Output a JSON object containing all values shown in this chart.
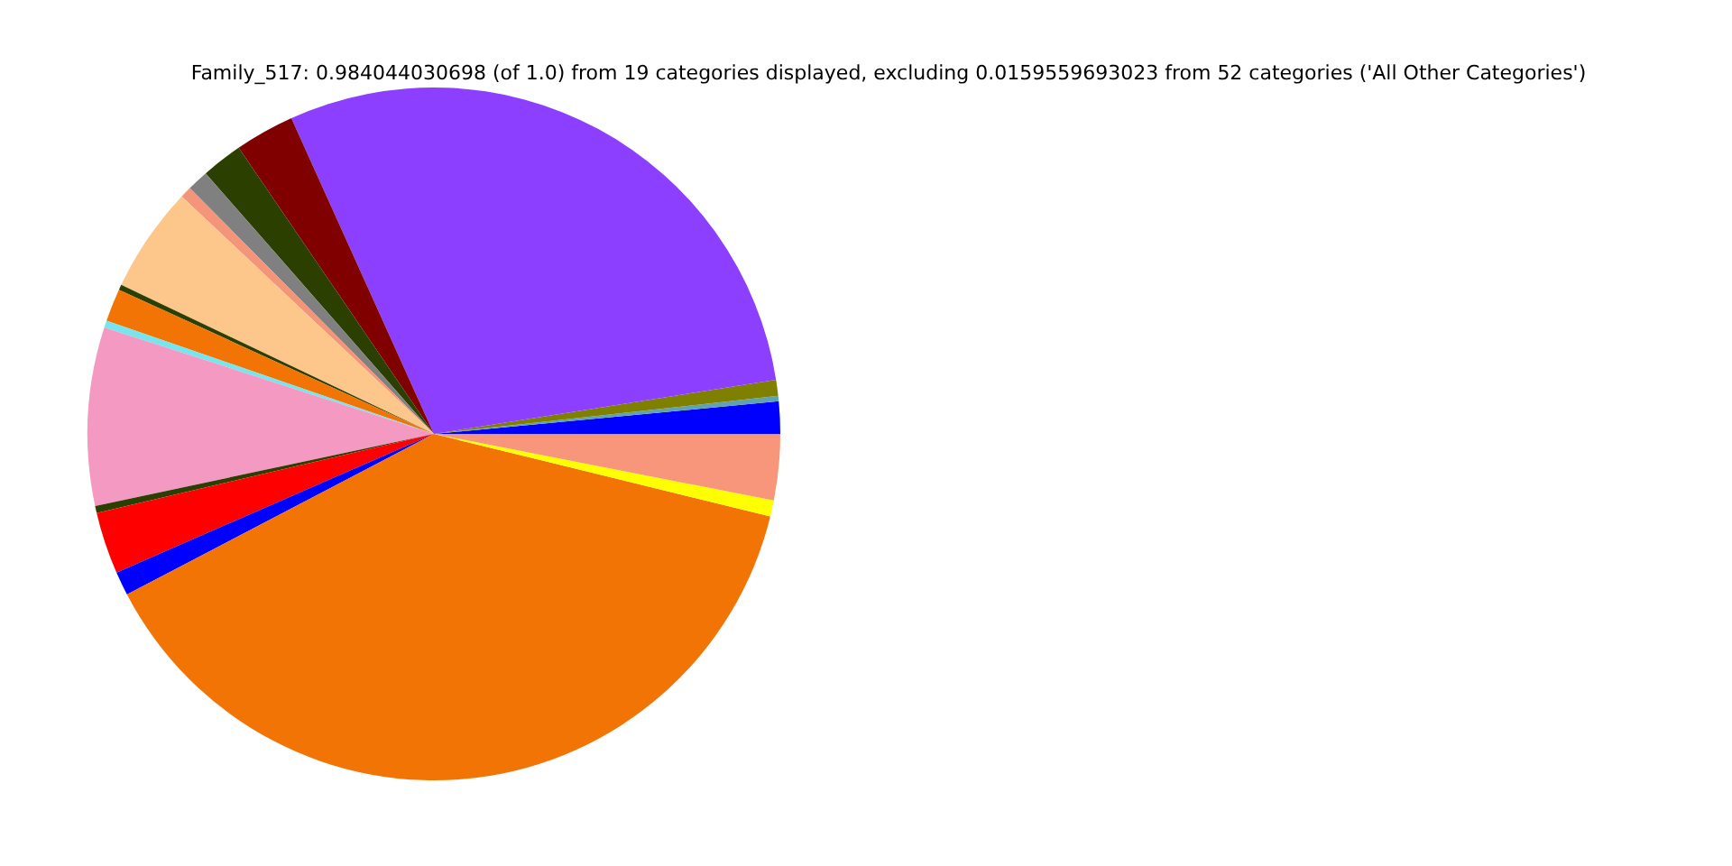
{
  "chart_data": {
    "type": "pie",
    "title": "Family_517: 0.984044030698 (of 1.0) from 19 categories displayed, excluding 0.0159559693023 from 52 categories ('All Other Categories')",
    "categories": [
      null,
      null,
      null,
      null,
      null,
      null,
      null,
      null,
      null,
      null,
      null,
      null,
      null,
      null,
      null,
      null,
      null,
      null,
      null
    ],
    "values": [
      1.5,
      0.25,
      0.75,
      29.25,
      2.78,
      1.92,
      1.0,
      0.53,
      4.94,
      0.25,
      1.53,
      0.33,
      8.31,
      0.33,
      2.89,
      1.11,
      38.5,
      0.75,
      3.08
    ],
    "colors": [
      "#0000ff",
      "#5fa3b0",
      "#808000",
      "#8c3fff",
      "#800000",
      "#2b3f00",
      "#808080",
      "#f4957a",
      "#fdc68a",
      "#2b3f00",
      "#f27405",
      "#77e4ee",
      "#f49ac2",
      "#2b3f00",
      "#ff0000",
      "#0000ff",
      "#f27405",
      "#ffff00",
      "#f7967a"
    ]
  }
}
